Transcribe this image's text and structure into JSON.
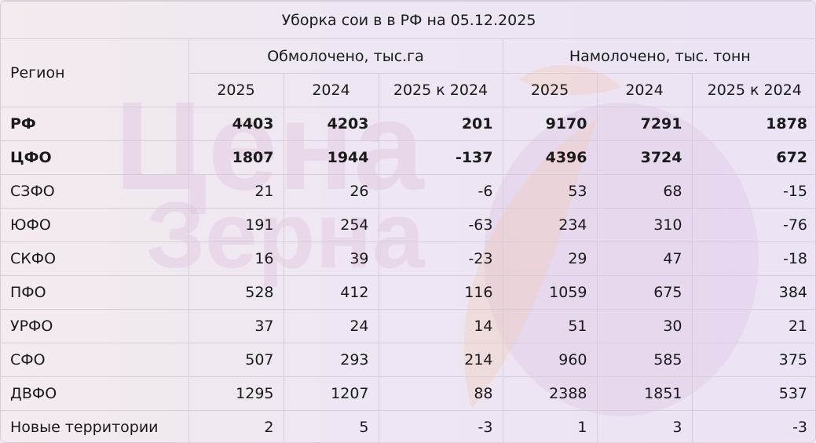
{
  "title": "Уборка сои в в РФ на 05.12.2025",
  "headers": {
    "region": "Регион",
    "group_threshed": "Обмолочено, тыс.га",
    "group_harvested": "Намолочено, тыс. тонн",
    "years": [
      "2025",
      "2024",
      "2025 к 2024"
    ]
  },
  "watermark": {
    "text_line1": "Цена",
    "text_line2": "Зерна",
    "colors": {
      "text": "#d9b8d6",
      "leaf": "#f2c9b3",
      "circle": "#c9a6d8"
    }
  },
  "rows": [
    {
      "region": "РФ",
      "bold": true,
      "threshed": [
        "4403",
        "4203",
        "201"
      ],
      "harvested": [
        "9170",
        "7291",
        "1878"
      ]
    },
    {
      "region": "ЦФО",
      "bold": true,
      "threshed": [
        "1807",
        "1944",
        "-137"
      ],
      "harvested": [
        "4396",
        "3724",
        "672"
      ]
    },
    {
      "region": "СЗФО",
      "bold": false,
      "threshed": [
        "21",
        "26",
        "-6"
      ],
      "harvested": [
        "53",
        "68",
        "-15"
      ]
    },
    {
      "region": "ЮФО",
      "bold": false,
      "threshed": [
        "191",
        "254",
        "-63"
      ],
      "harvested": [
        "234",
        "310",
        "-76"
      ]
    },
    {
      "region": "СКФО",
      "bold": false,
      "threshed": [
        "16",
        "39",
        "-23"
      ],
      "harvested": [
        "29",
        "47",
        "-18"
      ]
    },
    {
      "region": "ПФО",
      "bold": false,
      "threshed": [
        "528",
        "412",
        "116"
      ],
      "harvested": [
        "1059",
        "675",
        "384"
      ]
    },
    {
      "region": "УРФО",
      "bold": false,
      "threshed": [
        "37",
        "24",
        "14"
      ],
      "harvested": [
        "51",
        "30",
        "21"
      ]
    },
    {
      "region": "СФО",
      "bold": false,
      "threshed": [
        "507",
        "293",
        "214"
      ],
      "harvested": [
        "960",
        "585",
        "375"
      ]
    },
    {
      "region": "ДВФО",
      "bold": false,
      "threshed": [
        "1295",
        "1207",
        "88"
      ],
      "harvested": [
        "2388",
        "1851",
        "537"
      ]
    },
    {
      "region": "Новые территории",
      "bold": false,
      "threshed": [
        "2",
        "5",
        "-3"
      ],
      "harvested": [
        "1",
        "3",
        "-3"
      ]
    }
  ]
}
